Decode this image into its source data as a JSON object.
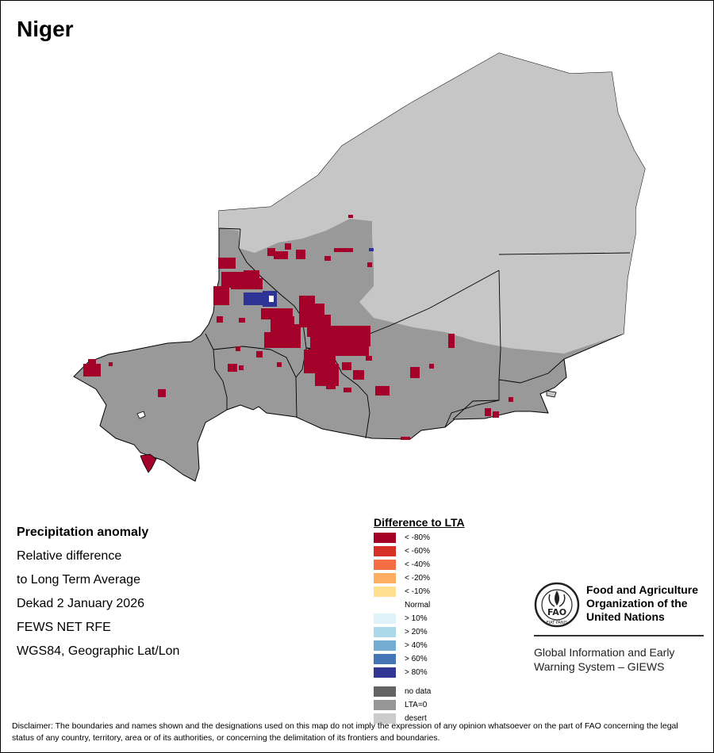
{
  "map": {
    "title": "Niger",
    "colors": {
      "desert": "#c6c6c6",
      "lta_zero": "#999999",
      "neg_80": "#a3002a",
      "pos_80": "#2e3496",
      "border": "#000000"
    }
  },
  "info": {
    "heading": "Precipitation anomaly",
    "line1": "Relative difference",
    "line2": "to Long Term Average",
    "line3": "Dekad 2 January 2026",
    "line4": "FEWS NET RFE",
    "line5": "WGS84, Geographic Lat/Lon"
  },
  "legend": {
    "title": "Difference to LTA",
    "items": [
      {
        "label": "< -80%",
        "color": "#a50026"
      },
      {
        "label": "< -60%",
        "color": "#d73027"
      },
      {
        "label": "< -40%",
        "color": "#f46d43"
      },
      {
        "label": "< -20%",
        "color": "#fdae61"
      },
      {
        "label": "< -10%",
        "color": "#fee090"
      },
      {
        "label": "Normal",
        "color": "#ffffff"
      },
      {
        "label": "> 10%",
        "color": "#e0f3f8"
      },
      {
        "label": "> 20%",
        "color": "#abd9e9"
      },
      {
        "label": "> 40%",
        "color": "#74add1"
      },
      {
        "label": "> 60%",
        "color": "#4575b4"
      },
      {
        "label": "> 80%",
        "color": "#313695"
      }
    ],
    "extra": [
      {
        "label": "no data",
        "color": "#636363"
      },
      {
        "label": "LTA=0",
        "color": "#969696"
      },
      {
        "label": "desert",
        "color": "#cccccc"
      }
    ]
  },
  "fao": {
    "name_line1": "Food and Agriculture",
    "name_line2": "Organization of the",
    "name_line3": "United Nations",
    "giews_line1": "Global Information and Early",
    "giews_line2": "Warning System – GIEWS",
    "logo_text": "FAO",
    "logo_motto": "FIAT PANIS"
  },
  "disclaimer": "Disclaimer: The boundaries and names shown and the designations used on this map do not imply the expression of any opinion whatsoever on the part of FAO concerning the legal status of any country, territory, area or of its authorities, or concerning the delimitation of its frontiers and boundaries."
}
